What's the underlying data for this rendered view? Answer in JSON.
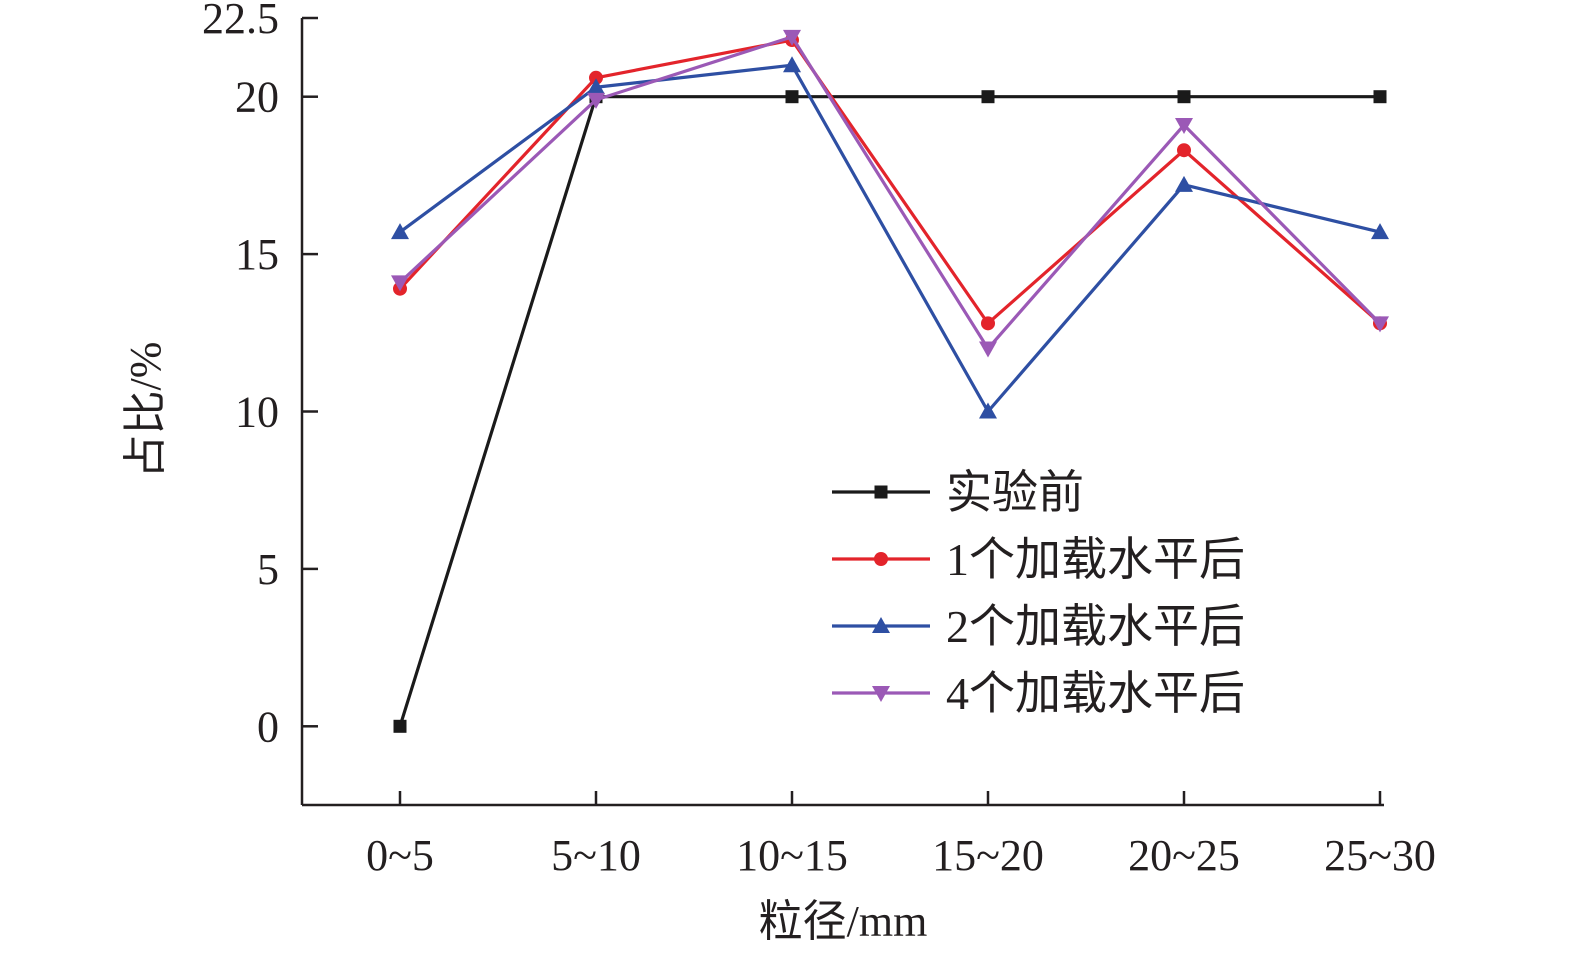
{
  "chart_data": {
    "type": "line",
    "title": "",
    "xlabel": "粒径/mm",
    "ylabel": "占比/%",
    "categories": [
      "0~5",
      "5~10",
      "10~15",
      "15~20",
      "20~25",
      "25~30"
    ],
    "yticks": [
      0,
      5,
      10,
      15,
      20,
      22.5
    ],
    "ytick_labels": [
      "0",
      "5",
      "10",
      "15",
      "20",
      "22.5"
    ],
    "ylim": [
      -2.5,
      22.5
    ],
    "grid": false,
    "legend_position": "bottom-right",
    "series": [
      {
        "name": "实验前",
        "color": "#1a1a1a",
        "marker": "square",
        "values": [
          0,
          20,
          20,
          20,
          20,
          20
        ]
      },
      {
        "name": "1个加载水平后",
        "color": "#e3242b",
        "marker": "circle",
        "values": [
          13.9,
          20.6,
          21.8,
          12.8,
          18.3,
          12.8
        ]
      },
      {
        "name": "2个加载水平后",
        "color": "#2e4fa3",
        "marker": "triangle-up",
        "values": [
          15.7,
          20.3,
          21.0,
          10.0,
          17.2,
          15.7
        ]
      },
      {
        "name": "4个加载水平后",
        "color": "#9b59b6",
        "marker": "triangle-down",
        "values": [
          14.1,
          19.9,
          21.9,
          12.0,
          19.1,
          12.8
        ]
      }
    ]
  }
}
